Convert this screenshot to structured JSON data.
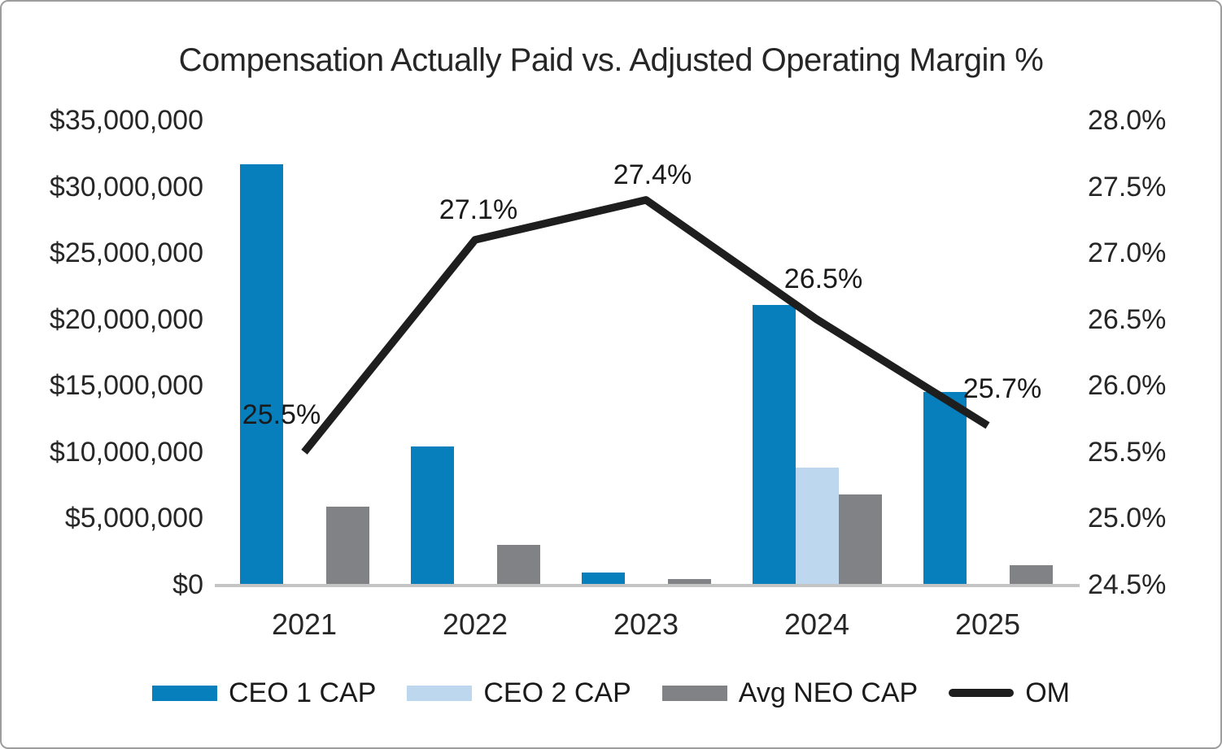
{
  "title": "Compensation Actually Paid vs. Adjusted Operating Margin %",
  "colors": {
    "ceo1_blue": "#067fbc",
    "ceo2_light_blue": "#bdd7ee",
    "neo_gray": "#808285",
    "om_line_black": "#1e1e1e",
    "axis_baseline_gray": "#c4c4c4",
    "text_dark": "#262626",
    "canvas_border_gray": "#9d9d9d"
  },
  "chart_data": {
    "type": "combo bar + line, dual axis",
    "categories": [
      "2021",
      "2022",
      "2023",
      "2024",
      "2025"
    ],
    "series": [
      {
        "name": "CEO 1 CAP",
        "type": "bar",
        "axis": "left",
        "color": "#067fbc",
        "values": [
          31700000,
          10400000,
          900000,
          21100000,
          14500000
        ]
      },
      {
        "name": "CEO 2 CAP",
        "type": "bar",
        "axis": "left",
        "color": "#bdd7ee",
        "values": [
          0,
          0,
          0,
          8800000,
          0
        ]
      },
      {
        "name": "Avg NEO CAP",
        "type": "bar",
        "axis": "left",
        "color": "#808285",
        "values": [
          5900000,
          3000000,
          400000,
          6800000,
          1500000
        ]
      },
      {
        "name": "OM",
        "type": "line",
        "axis": "right",
        "color": "#1e1e1e",
        "values": [
          25.5,
          27.1,
          27.4,
          26.5,
          25.7
        ],
        "labels": [
          "25.5%",
          "27.1%",
          "27.4%",
          "26.5%",
          "25.7%"
        ],
        "label_offsets": [
          [
            -28,
            -46
          ],
          [
            4,
            -37
          ],
          [
            8,
            -31
          ],
          [
            8,
            -50
          ],
          [
            18,
            -45
          ]
        ]
      }
    ],
    "left_axis": {
      "min": 0,
      "max": 35000000,
      "tick_labels": [
        "$35,000,000",
        "$30,000,000",
        "$25,000,000",
        "$20,000,000",
        "$15,000,000",
        "$10,000,000",
        "$5,000,000",
        "$0"
      ]
    },
    "right_axis": {
      "min": 24.5,
      "max": 28.0,
      "tick_labels": [
        "28.0%",
        "27.5%",
        "27.0%",
        "26.5%",
        "26.0%",
        "25.5%",
        "25.0%",
        "24.5%"
      ]
    },
    "gridlines": false,
    "legend_position": "bottom"
  }
}
